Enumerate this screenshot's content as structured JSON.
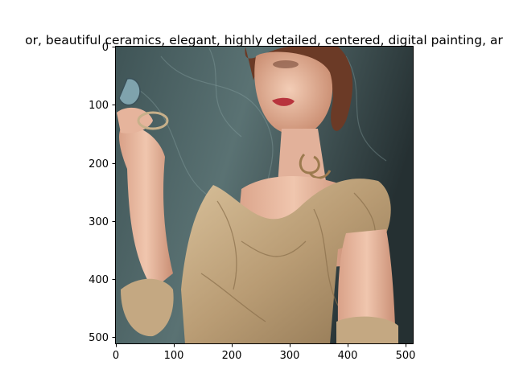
{
  "figure": {
    "title": "or,  beautiful ceramics, elegant, highly detailed, centered, digital painting, ar"
  },
  "image": {
    "subject": "portrait-illustration",
    "palette": {
      "background": "#4f6465",
      "background_dark": "#283234",
      "skin": "#e8b9a0",
      "dress": "#c9b08b",
      "hair": "#6b3a26"
    }
  },
  "axes": {
    "x_ticks": [
      "0",
      "100",
      "200",
      "300",
      "400",
      "500"
    ],
    "y_ticks": [
      "0",
      "100",
      "200",
      "300",
      "400",
      "500"
    ]
  }
}
